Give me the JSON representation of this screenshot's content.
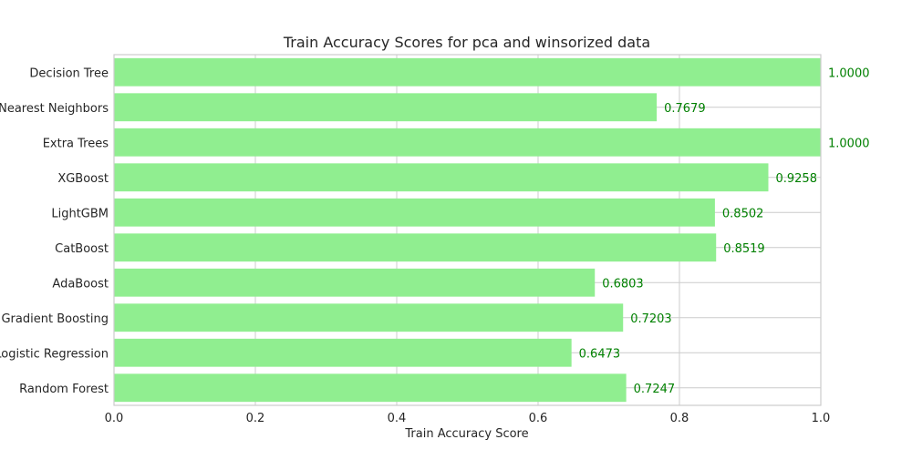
{
  "chart_data": {
    "type": "bar",
    "orientation": "horizontal",
    "title": "Train Accuracy Scores for pca and winsorized data",
    "xlabel": "Train Accuracy Score",
    "ylabel": "",
    "xlim": [
      0,
      1
    ],
    "xticks": [
      "0.0",
      "0.2",
      "0.4",
      "0.6",
      "0.8",
      "1.0"
    ],
    "grid": true,
    "bar_color": "#90ee90",
    "label_color": "#008000",
    "categories": [
      "Decision Tree",
      "K-Nearest Neighbors",
      "Extra Trees",
      "XGBoost",
      "LightGBM",
      "CatBoost",
      "AdaBoost",
      "Gradient Boosting",
      "Logistic Regression",
      "Random Forest"
    ],
    "values": [
      1.0,
      0.7679,
      1.0,
      0.9258,
      0.8502,
      0.8519,
      0.6803,
      0.7203,
      0.6473,
      0.7247
    ],
    "value_labels": [
      "1.0000",
      "0.7679",
      "1.0000",
      "0.9258",
      "0.8502",
      "0.8519",
      "0.6803",
      "0.7203",
      "0.6473",
      "0.7247"
    ]
  }
}
